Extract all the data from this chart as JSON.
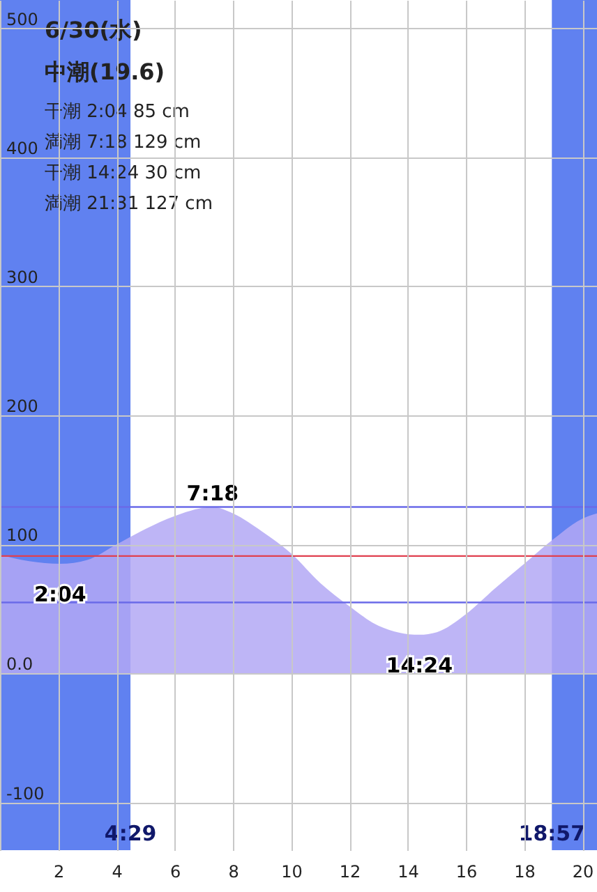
{
  "chart_data": {
    "type": "area",
    "title": "6/30(水)",
    "subtitle": "中潮(19.6)",
    "x": [
      0,
      1,
      2.07,
      3,
      4,
      5,
      6,
      7.3,
      8,
      9,
      10,
      11,
      12,
      13,
      14.4,
      15,
      16,
      17,
      18,
      19,
      20,
      20.5
    ],
    "series": [
      {
        "color": "#b3a8f5",
        "values": [
          92,
          87,
          85,
          88,
          100,
          112,
          122,
          129,
          124,
          110,
          93,
          70,
          52,
          37,
          30,
          32,
          46,
          66,
          85,
          104,
          120,
          124
        ]
      }
    ],
    "xlim": [
      0,
      20.5
    ],
    "xticks": [
      {
        "value": 0,
        "label": null
      },
      2,
      4,
      6,
      8,
      10,
      12,
      14,
      16,
      18,
      20
    ],
    "ylim": [
      -137,
      522
    ],
    "yticks": [
      -100,
      {
        "value": 0,
        "label": "0.0"
      },
      100,
      200,
      300,
      400,
      500
    ],
    "grid": true,
    "bands": [
      {
        "axis": "x",
        "from": 0,
        "to": 4.48,
        "label": "4:29",
        "color": "#4f73ee"
      },
      {
        "axis": "x",
        "from": 18.95,
        "to": 20.5,
        "label": "18:57",
        "color": "#4f73ee"
      }
    ],
    "ref_lines": [
      {
        "axis": "y",
        "value": 91,
        "color": "#e0404f"
      },
      {
        "axis": "y",
        "value": 129,
        "color": "#6a6ae8"
      },
      {
        "axis": "y",
        "value": 55,
        "color": "#6a6ae8"
      }
    ],
    "annotations": [
      "干潮  2:04   85 cm",
      "満潮  7:18  129 cm",
      "干潮  14:24   30 cm",
      "満潮  21:31  127 cm",
      {
        "text": "2:04",
        "x": 2.07,
        "y": 85
      },
      {
        "text": "7:18",
        "x": 7.3,
        "y": 129
      },
      {
        "text": "14:24",
        "x": 14.4,
        "y": 30
      }
    ]
  }
}
